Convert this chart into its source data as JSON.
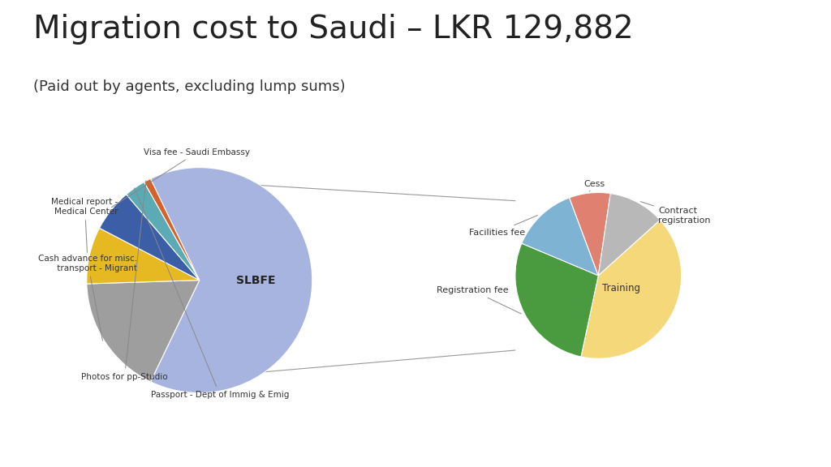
{
  "title": "Migration cost to Saudi – LKR 129,882",
  "subtitle": "(Paid out by agents, excluding lump sums)",
  "title_fontsize": 28,
  "subtitle_fontsize": 13,
  "background_color": "#ffffff",
  "left_labels": [
    "SLBFE",
    "Cash advance for misc.\n transport - Migrant",
    "Medical report -\nMedical Center",
    "Visa fee - Saudi Embassy",
    "Passport - Dept of Immig & Emig",
    "Photos for pp-Studio"
  ],
  "left_values": [
    63,
    17,
    8,
    6,
    3,
    1
  ],
  "left_colors": [
    "#a8b4e0",
    "#9e9e9e",
    "#e6b822",
    "#3b5ea6",
    "#5baab4",
    "#d4622a"
  ],
  "right_labels": [
    "Training",
    "Registration fee",
    "Facilities fee",
    "Cess",
    "Contract\nregistration"
  ],
  "right_values": [
    40,
    28,
    13,
    8,
    11
  ],
  "right_colors": [
    "#f5d87a",
    "#4a9a3f",
    "#7fb3d3",
    "#e08070",
    "#b8b8b8"
  ]
}
